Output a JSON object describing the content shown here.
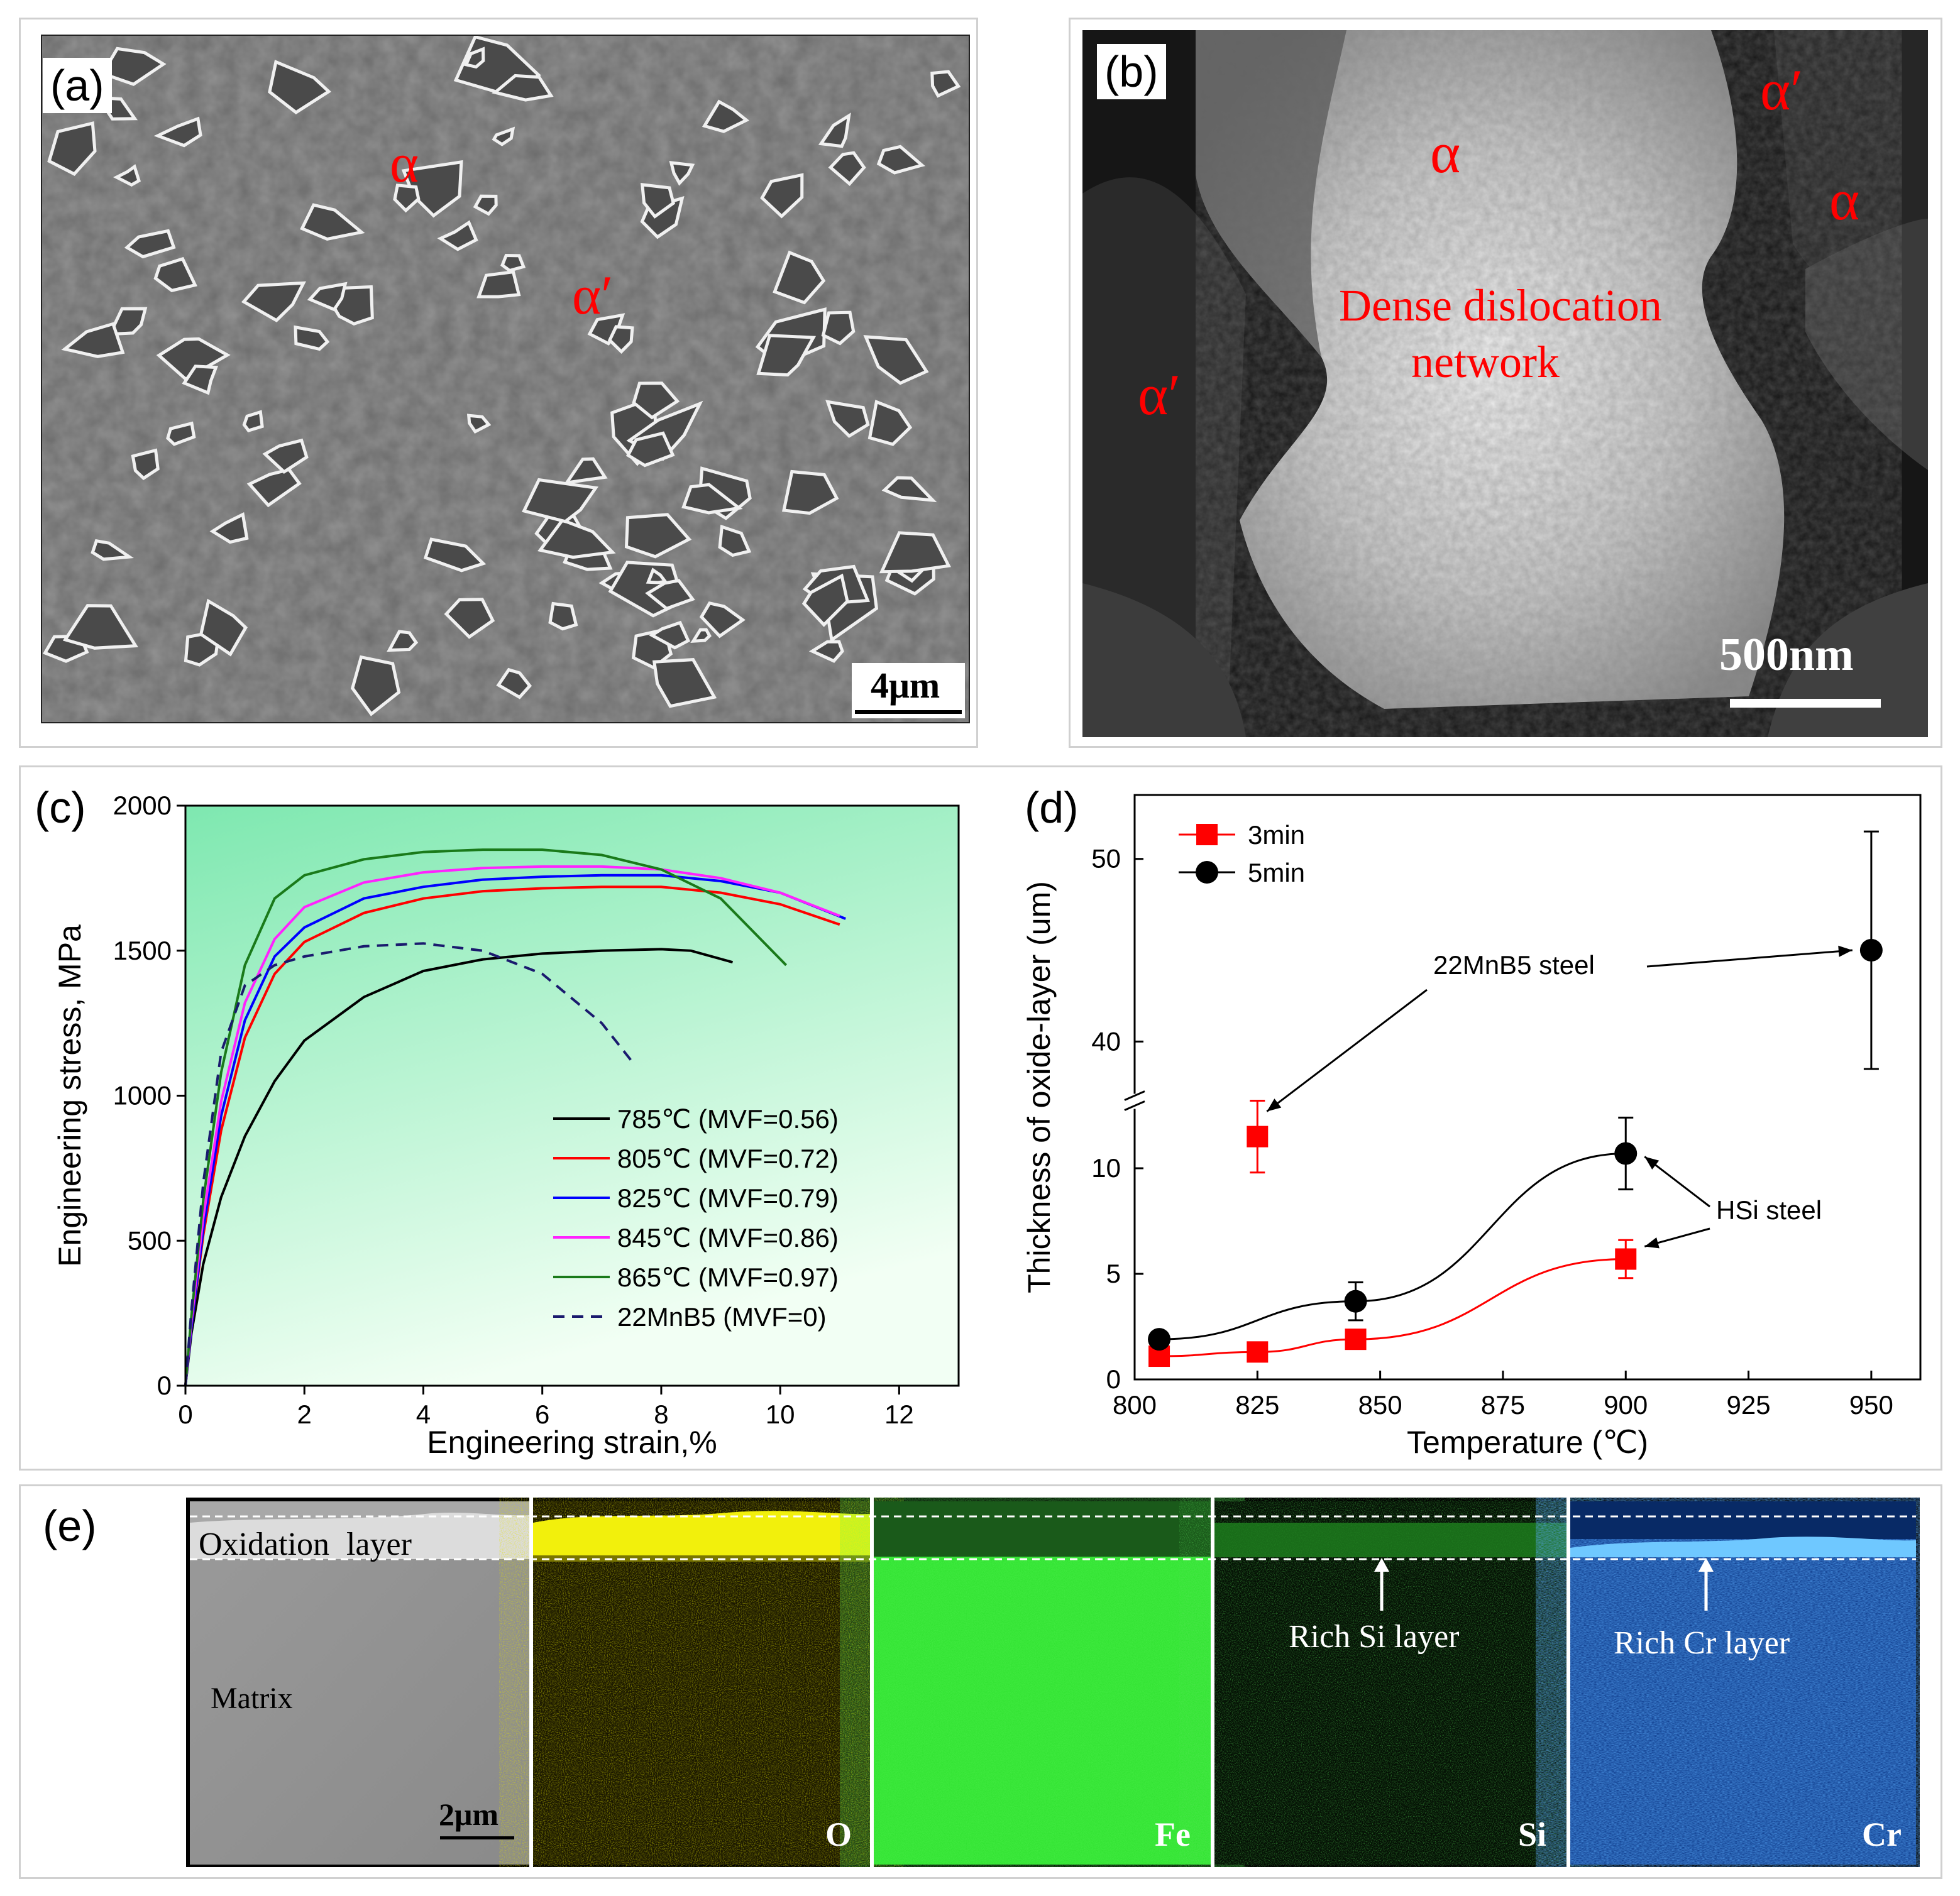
{
  "panel_a": {
    "label": "(a)",
    "phase_alpha": "α",
    "phase_alpha_prime": "α′",
    "scale_bar": "4μm"
  },
  "panel_b": {
    "label": "(b)",
    "phase_alpha_1": "α",
    "phase_alpha_2": "α",
    "phase_alpha_prime_1": "α′",
    "phase_alpha_prime_2": "α′",
    "annotation_line1": "Dense dislocation",
    "annotation_line2": "network",
    "scale_bar": "500nm"
  },
  "panel_e": {
    "label": "(e)",
    "oxidation_label": "Oxidation layer",
    "matrix_label": "Matrix",
    "scale_bar": "2μm",
    "maps": [
      {
        "element": "O",
        "color": "#e6e600"
      },
      {
        "element": "Fe",
        "color": "#33dd22"
      },
      {
        "element": "Si",
        "color": "#22aa22"
      },
      {
        "element": "Cr",
        "color": "#2a7adf"
      }
    ],
    "si_note": "Rich Si layer",
    "cr_note": "Rich Cr layer"
  },
  "chart_data": [
    {
      "panel": "(c)",
      "type": "line",
      "title": "",
      "xlabel": "Engineering strain,%",
      "ylabel": "Engineering stress, MPa",
      "xlim": [
        0,
        13
      ],
      "ylim": [
        0,
        2000
      ],
      "xticks": [
        "0",
        "2",
        "4",
        "6",
        "8",
        "10",
        "12"
      ],
      "yticks": [
        "0",
        "500",
        "1000",
        "1500",
        "2000"
      ],
      "background": [
        "#7ee8b0",
        "#f2fff4"
      ],
      "legend_position": "bottom-right",
      "series": [
        {
          "name": "785℃ (MVF=0.56)",
          "color": "#000000",
          "dash": false,
          "points": [
            [
              0,
              0
            ],
            [
              0.1,
              180
            ],
            [
              0.3,
              420
            ],
            [
              0.6,
              650
            ],
            [
              1,
              860
            ],
            [
              1.5,
              1050
            ],
            [
              2,
              1190
            ],
            [
              3,
              1340
            ],
            [
              4,
              1430
            ],
            [
              5,
              1470
            ],
            [
              6,
              1490
            ],
            [
              7,
              1500
            ],
            [
              8,
              1505
            ],
            [
              8.5,
              1500
            ],
            [
              9.2,
              1460
            ]
          ]
        },
        {
          "name": "805℃ (MVF=0.72)",
          "color": "#ff0000",
          "dash": false,
          "points": [
            [
              0,
              0
            ],
            [
              0.1,
              200
            ],
            [
              0.3,
              520
            ],
            [
              0.6,
              880
            ],
            [
              1,
              1200
            ],
            [
              1.5,
              1420
            ],
            [
              2,
              1530
            ],
            [
              3,
              1630
            ],
            [
              4,
              1680
            ],
            [
              5,
              1705
            ],
            [
              6,
              1715
            ],
            [
              7,
              1720
            ],
            [
              8,
              1720
            ],
            [
              9,
              1700
            ],
            [
              10,
              1660
            ],
            [
              11,
              1590
            ]
          ]
        },
        {
          "name": "825℃ (MVF=0.79)",
          "color": "#0000ff",
          "dash": false,
          "points": [
            [
              0,
              0
            ],
            [
              0.1,
              200
            ],
            [
              0.3,
              540
            ],
            [
              0.6,
              930
            ],
            [
              1,
              1260
            ],
            [
              1.5,
              1480
            ],
            [
              2,
              1580
            ],
            [
              3,
              1680
            ],
            [
              4,
              1720
            ],
            [
              5,
              1745
            ],
            [
              6,
              1755
            ],
            [
              7,
              1760
            ],
            [
              8,
              1760
            ],
            [
              9,
              1740
            ],
            [
              10,
              1700
            ],
            [
              11.1,
              1610
            ]
          ]
        },
        {
          "name": "845℃ (MVF=0.86)",
          "color": "#ff22ff",
          "dash": false,
          "points": [
            [
              0,
              0
            ],
            [
              0.1,
              220
            ],
            [
              0.3,
              580
            ],
            [
              0.6,
              980
            ],
            [
              1,
              1320
            ],
            [
              1.5,
              1540
            ],
            [
              2,
              1650
            ],
            [
              3,
              1735
            ],
            [
              4,
              1770
            ],
            [
              5,
              1785
            ],
            [
              6,
              1790
            ],
            [
              7,
              1790
            ],
            [
              8,
              1780
            ],
            [
              9,
              1750
            ],
            [
              10,
              1700
            ],
            [
              11,
              1620
            ]
          ]
        },
        {
          "name": "865℃ (MVF=0.97)",
          "color": "#1a7a1a",
          "dash": false,
          "points": [
            [
              0,
              0
            ],
            [
              0.1,
              240
            ],
            [
              0.3,
              640
            ],
            [
              0.6,
              1080
            ],
            [
              1,
              1450
            ],
            [
              1.5,
              1680
            ],
            [
              2,
              1760
            ],
            [
              3,
              1815
            ],
            [
              4,
              1840
            ],
            [
              5,
              1848
            ],
            [
              6,
              1848
            ],
            [
              7,
              1830
            ],
            [
              8,
              1780
            ],
            [
              9,
              1680
            ],
            [
              10.1,
              1450
            ]
          ]
        },
        {
          "name": "22MnB5 (MVF=0)",
          "color": "#1a1a6e",
          "dash": true,
          "points": [
            [
              0,
              0
            ],
            [
              0.1,
              260
            ],
            [
              0.3,
              700
            ],
            [
              0.6,
              1150
            ],
            [
              1,
              1380
            ],
            [
              1.5,
              1450
            ],
            [
              2,
              1480
            ],
            [
              3,
              1515
            ],
            [
              4,
              1525
            ],
            [
              5,
              1500
            ],
            [
              6,
              1420
            ],
            [
              7,
              1250
            ],
            [
              7.5,
              1120
            ]
          ]
        }
      ]
    },
    {
      "panel": "(d)",
      "type": "scatter",
      "title": "",
      "xlabel": "Temperature (℃)",
      "ylabel": "Thickness of oxide-layer (um)",
      "xlim": [
        800,
        960
      ],
      "xticks": [
        "800",
        "825",
        "850",
        "875",
        "900",
        "925",
        "950"
      ],
      "y_axis_break": {
        "lower": [
          0,
          12.5
        ],
        "upper": [
          37.5,
          53.5
        ]
      },
      "yticks_lower": [
        "0",
        "5",
        "10"
      ],
      "yticks_upper": [
        "40",
        "50"
      ],
      "legend_position": "top-left",
      "series": [
        {
          "name": "3min",
          "color": "#ff0000",
          "marker": "square",
          "points": [
            {
              "x": 805,
              "y": 1.1,
              "err": 0
            },
            {
              "x": 825,
              "y": 1.3,
              "err": 0
            },
            {
              "x": 845,
              "y": 1.9,
              "err": 0
            },
            {
              "x": 900,
              "y": 5.7,
              "err": 0.9
            }
          ],
          "connected": true
        },
        {
          "name": "5min",
          "color": "#000000",
          "marker": "circle",
          "points": [
            {
              "x": 805,
              "y": 1.9,
              "err": 0
            },
            {
              "x": 845,
              "y": 3.7,
              "err": 0.9
            },
            {
              "x": 900,
              "y": 10.7,
              "err": 1.7
            }
          ],
          "connected": true
        },
        {
          "name": "3min 22MnB5",
          "color": "#ff0000",
          "marker": "square",
          "points": [
            {
              "x": 825,
              "y": 11.5,
              "err": 1.7
            }
          ],
          "connected": false
        },
        {
          "name": "5min 22MnB5",
          "color": "#000000",
          "marker": "circle",
          "points": [
            {
              "x": 950,
              "y": 45,
              "err": 6.5
            }
          ],
          "connected": false
        }
      ],
      "annotations": [
        "22MnB5 steel",
        "HSi steel"
      ]
    }
  ]
}
